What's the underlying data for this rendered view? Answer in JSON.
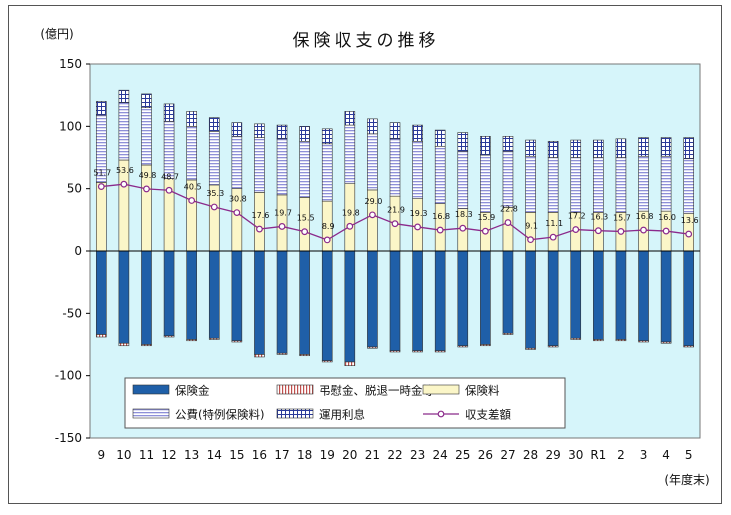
{
  "chart_data": {
    "type": "bar",
    "title": "保険収支の推移",
    "unit_label": "(億円)",
    "x_unit_label": "(年度末)",
    "ylim": [
      -150,
      150
    ],
    "yticks": [
      150,
      100,
      50,
      0,
      -50,
      -100,
      -150
    ],
    "grid": false,
    "legend_position": "bottom-inside",
    "categories": [
      "9",
      "10",
      "11",
      "12",
      "13",
      "14",
      "15",
      "16",
      "17",
      "18",
      "19",
      "20",
      "21",
      "22",
      "23",
      "24",
      "25",
      "26",
      "27",
      "28",
      "29",
      "30",
      "R1",
      "2",
      "3",
      "4",
      "5"
    ],
    "series": [
      {
        "name": "保険金",
        "kind": "bar",
        "color": "#1f5fa8",
        "values": [
          -67,
          -74,
          -75,
          -68,
          -71,
          -70,
          -72,
          -83,
          -82,
          -83,
          -88,
          -89,
          -77,
          -80,
          -80,
          -80,
          -76,
          -75,
          -66,
          -78,
          -76,
          -70,
          -71,
          -71,
          -72,
          -73,
          -76
        ]
      },
      {
        "name": "弔慰金、脱退一時金等",
        "kind": "bar",
        "color": "#c0504d",
        "values": [
          -2,
          -2,
          -1,
          -1,
          -1,
          -1,
          -1,
          -2,
          -1,
          -1,
          -1,
          -3,
          -1,
          -1,
          -1,
          -1,
          -1,
          -1,
          -1,
          -1,
          -1,
          -1,
          -1,
          -1,
          -1,
          -1,
          -1
        ]
      },
      {
        "name": "保険料",
        "kind": "bar",
        "color": "#fbf6c8",
        "values": [
          55,
          73,
          69,
          58,
          57,
          53,
          50,
          47,
          45,
          43,
          40,
          54,
          49,
          44,
          42,
          38,
          34,
          31,
          35,
          31,
          31,
          31,
          31,
          31,
          32,
          32,
          30
        ]
      },
      {
        "name": "公費(特例保険料)",
        "kind": "bar",
        "color": "#bdbfe8",
        "values": [
          54,
          46,
          46,
          46,
          43,
          43,
          42,
          44,
          45,
          45,
          46,
          47,
          45,
          46,
          46,
          46,
          46,
          46,
          45,
          45,
          44,
          44,
          44,
          44,
          44,
          44,
          44
        ]
      },
      {
        "name": "運用利息",
        "kind": "bar",
        "color": "#ffffff",
        "values": [
          11,
          10,
          11,
          14,
          12,
          11,
          11,
          11,
          11,
          12,
          12,
          11,
          12,
          13,
          13,
          13,
          15,
          15,
          12,
          13,
          13,
          14,
          14,
          15,
          15,
          15,
          17
        ]
      },
      {
        "name": "収支差額",
        "kind": "line",
        "color": "#8b2a8b",
        "values": [
          51.7,
          53.6,
          49.8,
          48.7,
          40.5,
          35.3,
          30.8,
          17.6,
          19.7,
          15.5,
          8.9,
          19.8,
          29.0,
          21.9,
          19.3,
          16.8,
          18.3,
          15.9,
          22.8,
          9.1,
          11.1,
          17.2,
          16.3,
          15.7,
          16.8,
          16.0,
          13.6
        ]
      }
    ],
    "data_labels": [
      "51.7",
      "53.6",
      "49.8",
      "48.7",
      "40.5",
      "35.3",
      "30.8",
      "17.6",
      "19.7",
      "15.5",
      "8.9",
      "19.8",
      "29.0",
      "21.9",
      "19.3",
      "16.8",
      "18.3",
      "15.9",
      "22.8",
      "9.1",
      "11.1",
      "17.2",
      "16.3",
      "15.7",
      "16.8",
      "16.0",
      "13.6"
    ]
  },
  "colors": {
    "plot_bg": "#d6f5fa",
    "bar_outline": "#333333",
    "axis": "#000000",
    "line": "#8b2a8b"
  }
}
